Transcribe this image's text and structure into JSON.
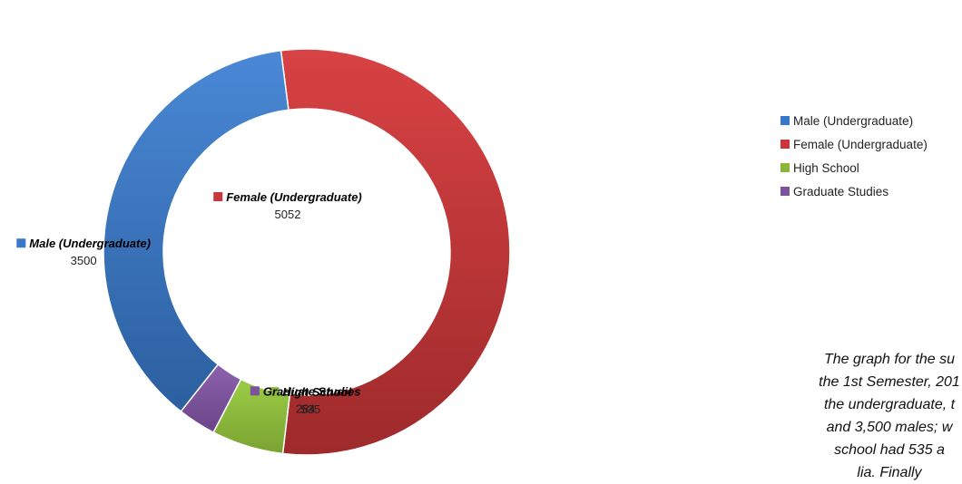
{
  "chart_data": {
    "type": "pie",
    "categories": [
      "Male (Undergraduate)",
      "Female (Undergraduate)",
      "High School",
      "Graduate Studies"
    ],
    "values": [
      3500,
      5052,
      535,
      284
    ],
    "colors": [
      "#3878c8",
      "#c8383a",
      "#8ab73a",
      "#7b529b"
    ],
    "legend": "right",
    "donut": true,
    "caption": "The graph for the su\nthe 1st Semester, 201\nthe undergraduate, t\nand 3,500 males; w\nschool had 535 a\nlia. Finally"
  }
}
